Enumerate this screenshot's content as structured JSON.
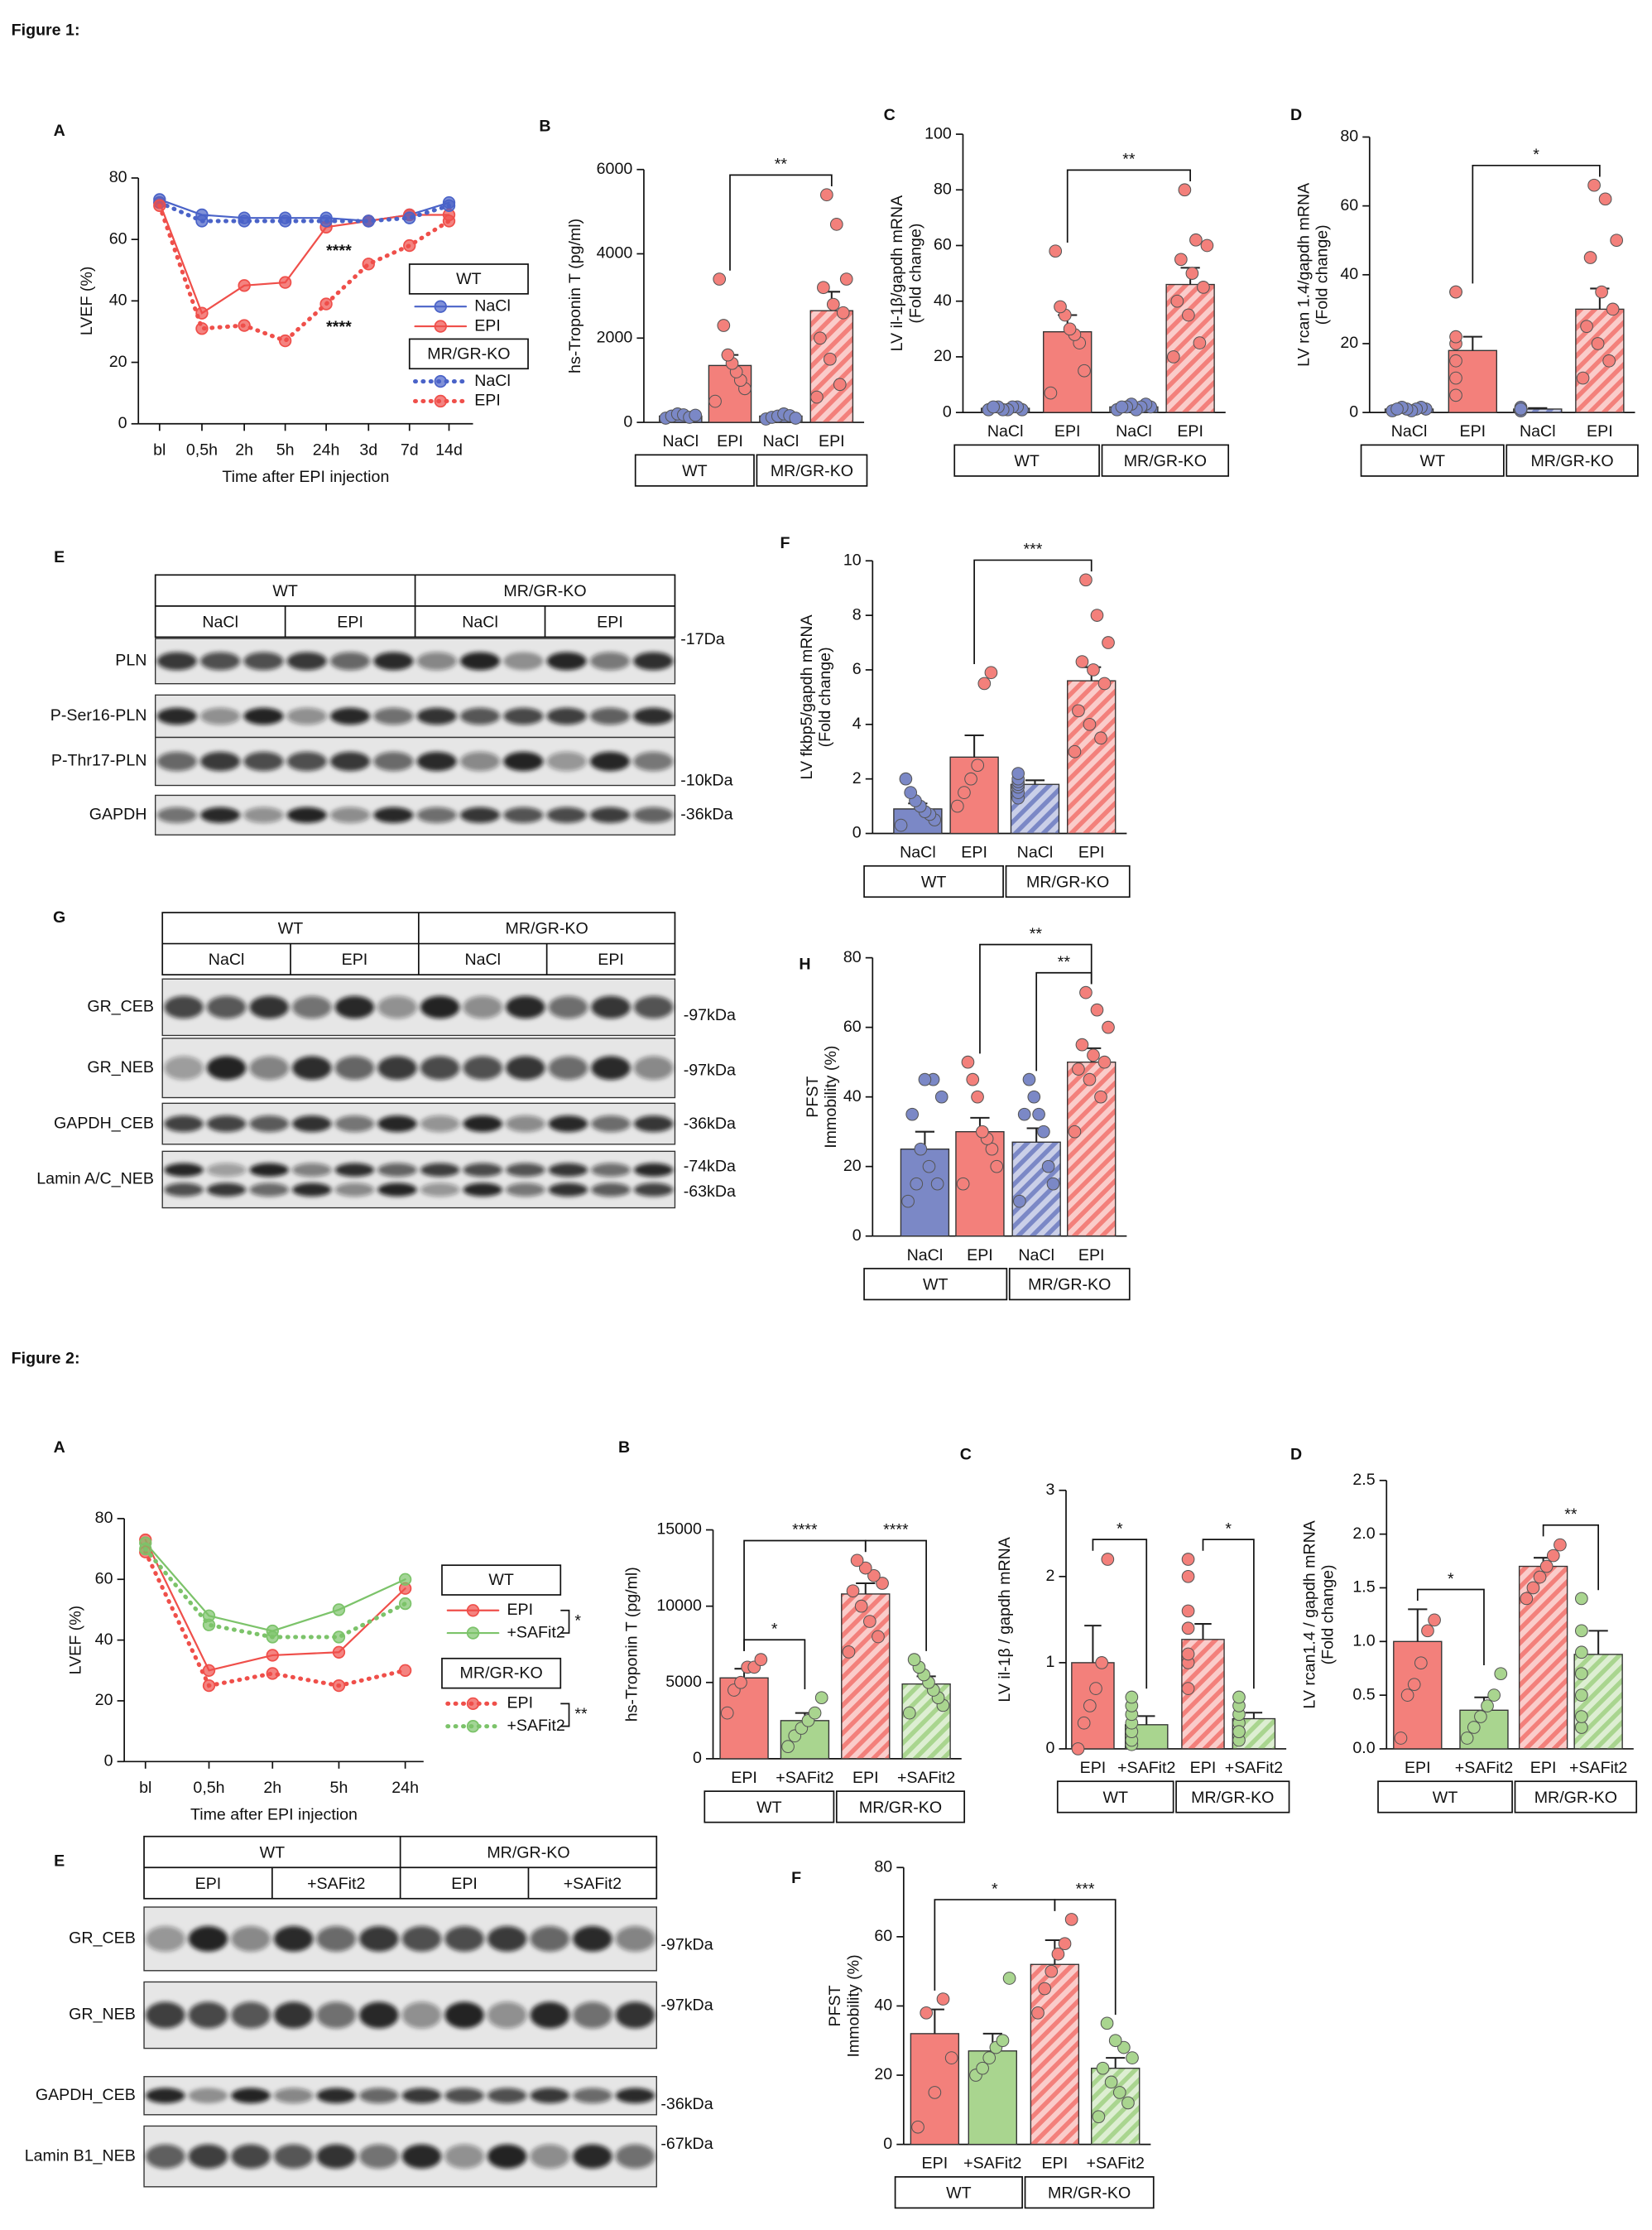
{
  "figures": [
    {
      "title": "Figure 1:"
    },
    {
      "title": "Figure 2:"
    }
  ],
  "chart_data": [
    {
      "type": "line",
      "panel": "A",
      "ylabel": [
        "LVEF (%)"
      ],
      "xlabel": "Time after EPI injection",
      "categories": [
        "bl",
        "0,5h",
        "2h",
        "5h",
        "24h",
        "3d",
        "7d",
        "14d"
      ],
      "ylim": [
        0,
        80
      ],
      "yticks": [
        0,
        20,
        40,
        60,
        80
      ],
      "legend_groups": [
        "WT",
        "MR/GR-KO"
      ],
      "series": [
        {
          "name": "NaCl",
          "color": "#4a63c8",
          "dotted": false,
          "values": [
            73,
            68,
            67,
            67,
            67,
            66,
            68,
            72
          ]
        },
        {
          "name": "EPI",
          "color": "#ef4f4a",
          "dotted": false,
          "values": [
            72,
            36,
            45,
            46,
            64,
            66,
            68,
            68
          ]
        },
        {
          "name": "NaCl",
          "color": "#4a63c8",
          "dotted": true,
          "values": [
            72,
            66,
            66,
            66,
            66,
            66,
            67,
            71
          ]
        },
        {
          "name": "EPI",
          "color": "#ef4f4a",
          "dotted": true,
          "values": [
            71,
            31,
            32,
            27,
            39,
            52,
            58,
            66
          ]
        }
      ],
      "annotations": [
        "****",
        "****"
      ]
    },
    {
      "type": "bar",
      "panel": "B",
      "ylabel": [
        "hs-Troponin T (pg/ml)"
      ],
      "categories": [
        "NaCl",
        "EPI",
        "NaCl",
        "EPI"
      ],
      "groups": [
        "WT",
        "MR/GR-KO"
      ],
      "ylim": [
        0,
        6000
      ],
      "yticks": [
        0,
        2000,
        4000,
        6000
      ],
      "values": [
        150,
        1350,
        150,
        2650
      ],
      "errors": [
        30,
        250,
        30,
        450
      ],
      "colors": [
        "#7b88c6",
        "#f3807b",
        "#7b88c6",
        "#f3807b"
      ],
      "hatched": [
        false,
        false,
        true,
        true
      ],
      "points": [
        [
          100,
          150,
          200,
          180,
          120,
          170
        ],
        [
          500,
          800,
          1000,
          1200,
          1400,
          1600,
          2300,
          3400
        ],
        [
          80,
          120,
          150,
          200,
          160,
          100
        ],
        [
          600,
          900,
          1500,
          2000,
          2600,
          2800,
          3200,
          3400,
          4700,
          5400
        ]
      ],
      "significance": [
        {
          "from": 1,
          "to": 3,
          "label": "**"
        }
      ]
    },
    {
      "type": "bar",
      "panel": "C",
      "ylabel": [
        "LV il-1β/gapdh mRNA",
        "(Fold change)"
      ],
      "categories": [
        "NaCl",
        "EPI",
        "NaCl",
        "EPI"
      ],
      "groups": [
        "WT",
        "MR/GR-KO"
      ],
      "ylim": [
        0,
        100
      ],
      "yticks": [
        0,
        20,
        40,
        60,
        80,
        100
      ],
      "values": [
        1.5,
        29,
        2,
        46
      ],
      "errors": [
        0.5,
        6,
        0.5,
        6
      ],
      "colors": [
        "#7b88c6",
        "#f3807b",
        "#7b88c6",
        "#f3807b"
      ],
      "hatched": [
        false,
        false,
        true,
        true
      ],
      "points": [
        [
          1,
          1,
          2,
          2,
          1,
          1,
          2,
          2
        ],
        [
          7,
          15,
          25,
          28,
          30,
          35,
          38,
          58
        ],
        [
          1,
          2,
          3,
          2,
          1,
          3,
          2,
          2
        ],
        [
          20,
          25,
          35,
          40,
          45,
          50,
          55,
          60,
          62,
          80
        ]
      ],
      "significance": [
        {
          "from": 1,
          "to": 3,
          "label": "**"
        }
      ]
    },
    {
      "type": "bar",
      "panel": "D",
      "ylabel": [
        "LV rcan 1.4/gapdh mRNA",
        "(Fold change)"
      ],
      "categories": [
        "NaCl",
        "EPI",
        "NaCl",
        "EPI"
      ],
      "groups": [
        "WT",
        "MR/GR-KO"
      ],
      "ylim": [
        0,
        80
      ],
      "yticks": [
        0,
        20,
        40,
        60,
        80
      ],
      "values": [
        1,
        18,
        1,
        30
      ],
      "errors": [
        0.3,
        4,
        0.3,
        6
      ],
      "colors": [
        "#7b88c6",
        "#f3807b",
        "#7b88c6",
        "#f3807b"
      ],
      "hatched": [
        false,
        false,
        true,
        true
      ],
      "points": [
        [
          0.5,
          1,
          1.5,
          1,
          0.5,
          1,
          1.5,
          1
        ],
        [
          5,
          10,
          15,
          20,
          22,
          35,
          35
        ],
        [
          0.5,
          1,
          1,
          1.5,
          0.5,
          1,
          1
        ],
        [
          10,
          15,
          20,
          25,
          30,
          35,
          45,
          50,
          62,
          66
        ]
      ],
      "significance": [
        {
          "from": 1,
          "to": 3,
          "label": "*"
        }
      ]
    },
    {
      "type": "blot",
      "panel": "E",
      "groups": [
        "WT",
        "MR/GR-KO"
      ],
      "conditions": [
        "NaCl",
        "EPI",
        "NaCl",
        "EPI"
      ],
      "rows": [
        "PLN",
        "P-Ser16-PLN",
        "P-Thr17-PLN",
        "GAPDH"
      ],
      "markers": [
        "-17Da",
        "-10kDa",
        "-36kDa"
      ]
    },
    {
      "type": "bar",
      "panel": "F",
      "ylabel": [
        "LV fkbp5/gapdh mRNA",
        "(Fold change)"
      ],
      "categories": [
        "NaCl",
        "EPI",
        "NaCl",
        "EPI"
      ],
      "groups": [
        "WT",
        "MR/GR-KO"
      ],
      "ylim": [
        0,
        10
      ],
      "yticks": [
        0,
        2,
        4,
        6,
        8,
        10
      ],
      "values": [
        0.9,
        2.8,
        1.8,
        5.6
      ],
      "errors": [
        0.2,
        0.8,
        0.15,
        0.5
      ],
      "colors": [
        "#7b88c6",
        "#f3807b",
        "#7b88c6",
        "#f3807b"
      ],
      "hatched": [
        false,
        false,
        true,
        true
      ],
      "points": [
        [
          0.3,
          0.5,
          0.7,
          0.8,
          1,
          1.2,
          1.5,
          2
        ],
        [
          1,
          1.5,
          2,
          2.5,
          5.5,
          5.9
        ],
        [
          1.3,
          1.5,
          1.7,
          1.8,
          1.9,
          2,
          2.2
        ],
        [
          3,
          3.5,
          4,
          4.5,
          5.5,
          6,
          6.3,
          7,
          8,
          9.3
        ]
      ],
      "significance": [
        {
          "from": 1,
          "to": 3,
          "label": "***"
        }
      ]
    },
    {
      "type": "blot",
      "panel": "G",
      "groups": [
        "WT",
        "MR/GR-KO"
      ],
      "conditions": [
        "NaCl",
        "EPI",
        "NaCl",
        "EPI"
      ],
      "rows": [
        "GR_CEB",
        "GR_NEB",
        "GAPDH_CEB",
        "Lamin A/C_NEB"
      ],
      "markers": [
        "-97kDa",
        "-97kDa",
        "-36kDa",
        "-74kDa",
        "-63kDa"
      ]
    },
    {
      "type": "bar",
      "panel": "H",
      "ylabel": [
        "PFST",
        "Immobility (%)"
      ],
      "categories": [
        "NaCl",
        "EPI",
        "NaCl",
        "EPI"
      ],
      "groups": [
        "WT",
        "MR/GR-KO"
      ],
      "ylim": [
        0,
        80
      ],
      "yticks": [
        0,
        20,
        40,
        60,
        80
      ],
      "values": [
        25,
        30,
        27,
        50
      ],
      "errors": [
        5,
        4,
        4,
        4
      ],
      "colors": [
        "#7b88c6",
        "#f3807b",
        "#7b88c6",
        "#f3807b"
      ],
      "hatched": [
        false,
        false,
        true,
        true
      ],
      "points": [
        [
          10,
          15,
          20,
          25,
          35,
          40,
          45,
          45,
          15
        ],
        [
          15,
          20,
          25,
          28,
          30,
          40,
          45,
          50
        ],
        [
          10,
          15,
          20,
          30,
          35,
          40,
          45,
          35
        ],
        [
          30,
          40,
          45,
          48,
          50,
          52,
          55,
          60,
          65,
          70
        ]
      ],
      "significance": [
        {
          "from": 2,
          "to": 3,
          "label": "**"
        },
        {
          "from": 1,
          "to": 3,
          "label": "**"
        }
      ]
    },
    {
      "type": "line",
      "panel": "A",
      "ylabel": [
        "LVEF (%)"
      ],
      "xlabel": "Time after EPI injection",
      "categories": [
        "bl",
        "0,5h",
        "2h",
        "5h",
        "24h"
      ],
      "ylim": [
        0,
        80
      ],
      "yticks": [
        0,
        20,
        40,
        60,
        80
      ],
      "legend_groups": [
        "WT",
        "MR/GR-KO"
      ],
      "series": [
        {
          "name": "EPI",
          "color": "#ef4f4a",
          "dotted": false,
          "values": [
            73,
            30,
            35,
            36,
            57
          ]
        },
        {
          "name": "+SAFit2",
          "color": "#7cc36a",
          "dotted": false,
          "values": [
            72,
            48,
            43,
            50,
            60
          ]
        },
        {
          "name": "EPI",
          "color": "#ef4f4a",
          "dotted": true,
          "values": [
            69,
            25,
            29,
            25,
            30
          ]
        },
        {
          "name": "+SAFit2",
          "color": "#7cc36a",
          "dotted": true,
          "values": [
            70,
            45,
            41,
            41,
            52
          ]
        }
      ],
      "legend_significance": [
        "*",
        "**"
      ]
    },
    {
      "type": "bar",
      "panel": "B",
      "ylabel": [
        "hs-Troponin T (pg/ml)"
      ],
      "categories": [
        "EPI",
        "+SAFit2",
        "EPI",
        "+SAFit2"
      ],
      "groups": [
        "WT",
        "MR/GR-KO"
      ],
      "ylim": [
        0,
        15000
      ],
      "yticks": [
        0,
        5000,
        10000,
        15000
      ],
      "values": [
        5300,
        2500,
        10800,
        4900
      ],
      "errors": [
        600,
        500,
        700,
        500
      ],
      "colors": [
        "#f3807b",
        "#a9d58f",
        "#f3807b",
        "#a9d58f"
      ],
      "hatched": [
        false,
        false,
        true,
        true
      ],
      "points": [
        [
          3000,
          4500,
          5000,
          6000,
          6000,
          6500
        ],
        [
          800,
          1500,
          2000,
          2500,
          3000,
          4000
        ],
        [
          7000,
          8000,
          9000,
          10000,
          11000,
          11500,
          12000,
          12500,
          13000
        ],
        [
          3000,
          3500,
          4000,
          4500,
          5000,
          5500,
          6000,
          6500
        ]
      ],
      "significance": [
        {
          "from": 0,
          "to": 1,
          "label": "*"
        },
        {
          "from": 2,
          "to": 3,
          "label": "****"
        },
        {
          "from": 0,
          "to": 2,
          "label": "****"
        }
      ]
    },
    {
      "type": "bar",
      "panel": "C",
      "ylabel": [
        "LV il-1β / gapdh mRNA"
      ],
      "categories": [
        "EPI",
        "+SAFit2",
        "EPI",
        "+SAFit2"
      ],
      "groups": [
        "WT",
        "MR/GR-KO"
      ],
      "ylim": [
        0,
        3
      ],
      "yticks": [
        0,
        1,
        2,
        3
      ],
      "values": [
        1.0,
        0.28,
        1.27,
        0.35
      ],
      "errors": [
        0.43,
        0.1,
        0.18,
        0.07
      ],
      "colors": [
        "#f3807b",
        "#a9d58f",
        "#f3807b",
        "#a9d58f"
      ],
      "hatched": [
        false,
        false,
        true,
        true
      ],
      "points": [
        [
          0,
          0.3,
          0.5,
          0.7,
          1,
          2.2
        ],
        [
          0.05,
          0.1,
          0.2,
          0.3,
          0.4,
          0.5,
          0.6
        ],
        [
          0.7,
          1,
          1.1,
          1.4,
          1.6,
          2.0,
          2.2
        ],
        [
          0.1,
          0.2,
          0.3,
          0.4,
          0.5,
          0.6,
          0.2
        ]
      ],
      "significance": [
        {
          "from": 0,
          "to": 1,
          "label": "*"
        },
        {
          "from": 2,
          "to": 3,
          "label": "*"
        }
      ]
    },
    {
      "type": "bar",
      "panel": "D",
      "ylabel": [
        "LV rcan1.4 / gapdh mRNA",
        "(Fold change)"
      ],
      "categories": [
        "EPI",
        "+SAFit2",
        "EPI",
        "+SAFit2"
      ],
      "groups": [
        "WT",
        "MR/GR-KO"
      ],
      "ylim": [
        0,
        2.5
      ],
      "yticks": [
        {
          "value": 0,
          "label": "0.0"
        },
        {
          "value": 0.5,
          "label": "0.5"
        },
        {
          "value": 1,
          "label": "1.0"
        },
        {
          "value": 1.5,
          "label": "1.5"
        },
        {
          "value": 2,
          "label": "2.0"
        },
        {
          "value": 2.5,
          "label": "2.5"
        }
      ],
      "values": [
        1.0,
        0.36,
        1.7,
        0.88
      ],
      "errors": [
        0.3,
        0.12,
        0.08,
        0.22
      ],
      "colors": [
        "#f3807b",
        "#a9d58f",
        "#f3807b",
        "#a9d58f"
      ],
      "hatched": [
        false,
        false,
        true,
        true
      ],
      "points": [
        [
          0.1,
          0.5,
          0.6,
          0.8,
          1.1,
          1.2
        ],
        [
          0.1,
          0.2,
          0.3,
          0.4,
          0.5,
          0.7
        ],
        [
          1.4,
          1.5,
          1.6,
          1.7,
          1.8,
          1.9
        ],
        [
          0.2,
          0.3,
          0.5,
          0.7,
          0.9,
          1.1,
          1.4
        ]
      ],
      "significance": [
        {
          "from": 0,
          "to": 1,
          "label": "*"
        },
        {
          "from": 2,
          "to": 3,
          "label": "**"
        }
      ]
    },
    {
      "type": "blot",
      "panel": "E",
      "groups": [
        "WT",
        "MR/GR-KO"
      ],
      "conditions": [
        "EPI",
        "+SAFit2",
        "EPI",
        "+SAFit2"
      ],
      "rows": [
        "GR_CEB",
        "GR_NEB",
        "GAPDH_CEB",
        "Lamin B1_NEB"
      ],
      "markers": [
        "-97kDa",
        "-97kDa",
        "-36kDa",
        "-67kDa"
      ]
    },
    {
      "type": "bar",
      "panel": "F",
      "ylabel": [
        "PFST",
        "Immobility (%)"
      ],
      "categories": [
        "EPI",
        "+SAFit2",
        "EPI",
        "+SAFit2"
      ],
      "groups": [
        "WT",
        "MR/GR-KO"
      ],
      "ylim": [
        0,
        80
      ],
      "yticks": [
        0,
        20,
        40,
        60,
        80
      ],
      "values": [
        32,
        27,
        52,
        22
      ],
      "errors": [
        7,
        5,
        7,
        3
      ],
      "colors": [
        "#f3807b",
        "#a9d58f",
        "#f3807b",
        "#a9d58f"
      ],
      "hatched": [
        false,
        false,
        true,
        true
      ],
      "points": [
        [
          5,
          15,
          25,
          38,
          42
        ],
        [
          20,
          22,
          25,
          28,
          30,
          48
        ],
        [
          38,
          45,
          50,
          55,
          58,
          65
        ],
        [
          8,
          12,
          15,
          18,
          22,
          25,
          28,
          30,
          35
        ]
      ],
      "significance": [
        {
          "from": 0,
          "to": 2,
          "label": "*"
        },
        {
          "from": 2,
          "to": 3,
          "label": "***"
        }
      ]
    }
  ]
}
